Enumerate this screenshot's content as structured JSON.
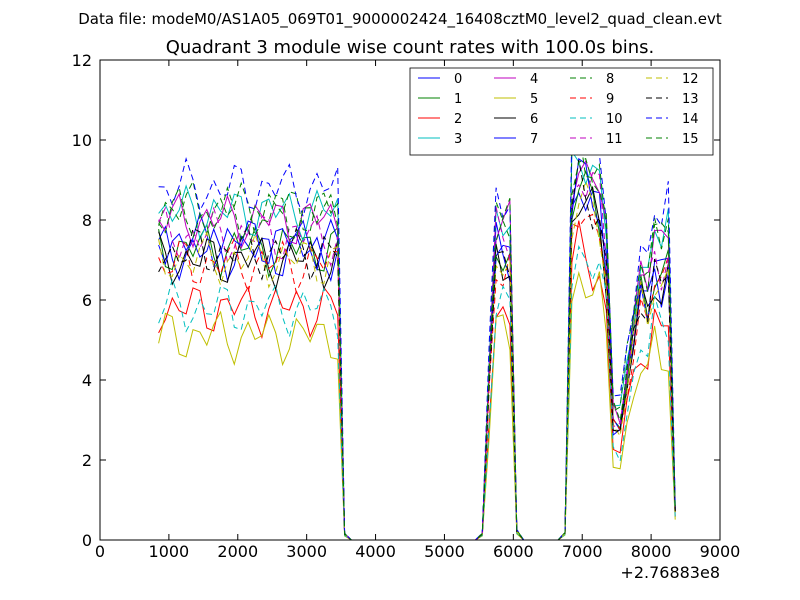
{
  "figure": {
    "supertitle": "Data file: modeM0/AS1A05_069T01_9000002424_16408cztM0_level2_quad_clean.evt"
  },
  "chart_data": {
    "type": "line",
    "title": "Quadrant 3 module wise count rates with 100.0s bins.",
    "xlabel": "",
    "ylabel": "",
    "x_offset_label": "+2.76883e8",
    "xlim": [
      0,
      9000
    ],
    "ylim": [
      0,
      12
    ],
    "x_ticks": [
      0,
      1000,
      2000,
      3000,
      4000,
      5000,
      6000,
      7000,
      8000,
      9000
    ],
    "y_ticks": [
      0,
      2,
      4,
      6,
      8,
      10,
      12
    ],
    "grid": false,
    "legend_position": "top-right",
    "legend_columns": 4,
    "x": [
      850,
      950,
      1050,
      1150,
      1250,
      1350,
      1450,
      1550,
      1650,
      1750,
      1850,
      1950,
      2050,
      2150,
      2250,
      2350,
      2450,
      2550,
      2650,
      2750,
      2850,
      2950,
      3050,
      3150,
      3250,
      3350,
      3450,
      3550,
      3650,
      3750,
      3850,
      3950,
      4050,
      4150,
      4250,
      4350,
      4450,
      4550,
      4650,
      4750,
      4850,
      4950,
      5050,
      5150,
      5250,
      5350,
      5450,
      5550,
      5650,
      5750,
      5850,
      5950,
      6050,
      6150,
      6250,
      6350,
      6450,
      6550,
      6650,
      6750,
      6850,
      6950,
      7050,
      7150,
      7250,
      7350,
      7450,
      7550,
      7650,
      7750,
      7850,
      7950,
      8050,
      8150,
      8250,
      8350
    ],
    "profile": [
      1,
      1,
      1,
      1,
      1,
      1,
      1,
      1,
      1,
      1,
      1,
      1,
      1,
      1,
      1,
      1,
      1,
      1,
      1,
      1,
      1,
      1,
      1,
      1,
      1,
      1,
      1,
      0.02,
      0,
      0,
      0,
      0,
      0,
      0,
      0,
      0,
      0,
      0,
      0,
      0,
      0,
      0,
      0,
      0,
      0,
      0,
      0,
      0.02,
      0.55,
      1,
      0.98,
      0.97,
      0.03,
      0,
      0,
      0,
      0,
      0,
      0,
      0.02,
      0.98,
      1.05,
      1.02,
      1,
      0.98,
      0.95,
      0.4,
      0.38,
      0.55,
      0.7,
      0.85,
      0.8,
      0.95,
      0.9,
      0.95,
      0.1
    ],
    "series": [
      {
        "name": "0",
        "color": "#0000ff",
        "dash": "solid",
        "base": 7.2
      },
      {
        "name": "1",
        "color": "#008000",
        "dash": "solid",
        "base": 7.3
      },
      {
        "name": "2",
        "color": "#ff0000",
        "dash": "solid",
        "base": 5.8
      },
      {
        "name": "3",
        "color": "#00bfbf",
        "dash": "solid",
        "base": 8.2
      },
      {
        "name": "4",
        "color": "#bf00bf",
        "dash": "solid",
        "base": 8.0
      },
      {
        "name": "5",
        "color": "#bfbf00",
        "dash": "solid",
        "base": 5.1
      },
      {
        "name": "6",
        "color": "#000000",
        "dash": "solid",
        "base": 7.0
      },
      {
        "name": "7",
        "color": "#0000ff",
        "dash": "solid",
        "base": 7.5
      },
      {
        "name": "8",
        "color": "#008000",
        "dash": "dashed",
        "base": 8.3
      },
      {
        "name": "9",
        "color": "#ff0000",
        "dash": "dashed",
        "base": 6.9
      },
      {
        "name": "10",
        "color": "#00bfbf",
        "dash": "dashed",
        "base": 5.8
      },
      {
        "name": "11",
        "color": "#bf00bf",
        "dash": "dashed",
        "base": 7.6
      },
      {
        "name": "12",
        "color": "#bfbf00",
        "dash": "dashed",
        "base": 7.0
      },
      {
        "name": "13",
        "color": "#000000",
        "dash": "dashed",
        "base": 7.2
      },
      {
        "name": "14",
        "color": "#0000ff",
        "dash": "dashed",
        "base": 8.8
      },
      {
        "name": "15",
        "color": "#008000",
        "dash": "dashed",
        "base": 8.1
      }
    ]
  }
}
